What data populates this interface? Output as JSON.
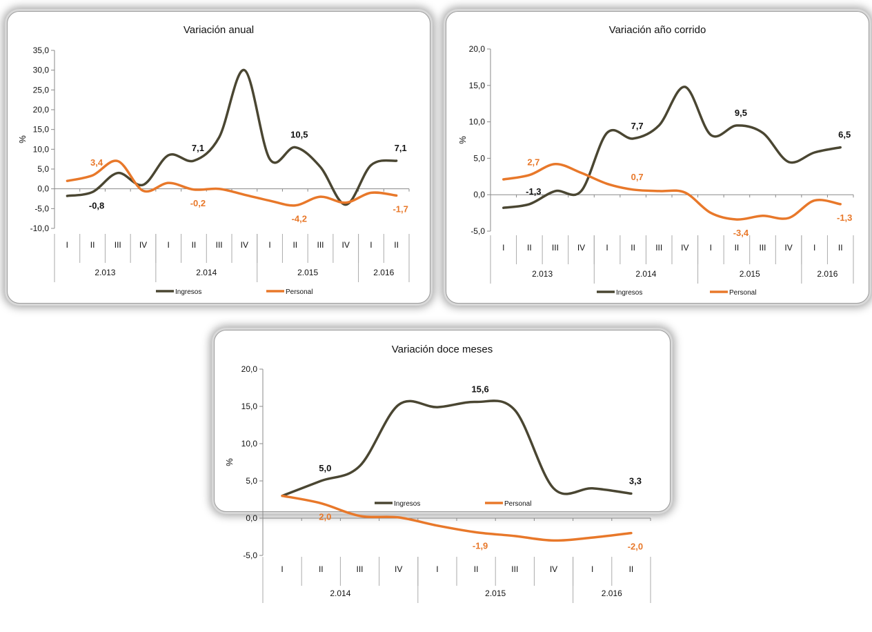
{
  "colors": {
    "ingresos": "#4a4632",
    "personal": "#e8782a",
    "ingresos_label": "#111111",
    "personal_label": "#e8782a"
  },
  "legend": {
    "ingresos": "Ingresos",
    "personal": "Personal"
  },
  "chart_data": [
    {
      "type": "line",
      "title": "Variación anual",
      "ylabel": "%",
      "ylim": [
        -10,
        35
      ],
      "yticks": [
        "35,0",
        "30,0",
        "25,0",
        "20,0",
        "15,0",
        "10,0",
        "5,0",
        "0,0",
        "-5,0",
        "-10,0"
      ],
      "ytick_values": [
        35,
        30,
        25,
        20,
        15,
        10,
        5,
        0,
        -5,
        -10
      ],
      "categories": [
        "I",
        "II",
        "III",
        "IV",
        "I",
        "II",
        "III",
        "IV",
        "I",
        "II",
        "III",
        "IV",
        "I",
        "II"
      ],
      "years": [
        {
          "label": "2.013",
          "span": 4
        },
        {
          "label": "2.014",
          "span": 4
        },
        {
          "label": "2.015",
          "span": 4
        },
        {
          "label": "2.016",
          "span": 2
        }
      ],
      "series": [
        {
          "name": "Ingresos",
          "values": [
            -1.8,
            -0.8,
            4.0,
            1.0,
            8.5,
            7.1,
            13.0,
            30.0,
            7.5,
            10.5,
            5.5,
            -4.0,
            6.0,
            7.1
          ]
        },
        {
          "name": "Personal",
          "values": [
            2.0,
            3.4,
            7.0,
            -0.5,
            1.5,
            -0.2,
            0.0,
            -1.5,
            -3.0,
            -4.2,
            -2.0,
            -3.5,
            -1.0,
            -1.7
          ]
        }
      ],
      "data_labels": [
        {
          "series": 0,
          "index": 1,
          "text": "-0,8",
          "pos": "below"
        },
        {
          "series": 0,
          "index": 5,
          "text": "7,1",
          "pos": "above"
        },
        {
          "series": 0,
          "index": 9,
          "text": "10,5",
          "pos": "above"
        },
        {
          "series": 0,
          "index": 13,
          "text": "7,1",
          "pos": "above"
        },
        {
          "series": 1,
          "index": 1,
          "text": "3,4",
          "pos": "above"
        },
        {
          "series": 1,
          "index": 5,
          "text": "-0,2",
          "pos": "below"
        },
        {
          "series": 1,
          "index": 9,
          "text": "-4,2",
          "pos": "below"
        },
        {
          "series": 1,
          "index": 13,
          "text": "-1,7",
          "pos": "below"
        }
      ]
    },
    {
      "type": "line",
      "title": "Variación año corrido",
      "ylabel": "%",
      "ylim": [
        -5,
        20
      ],
      "yticks": [
        "20,0",
        "15,0",
        "10,0",
        "5,0",
        "0,0",
        "-5,0"
      ],
      "ytick_values": [
        20,
        15,
        10,
        5,
        0,
        -5
      ],
      "categories": [
        "I",
        "II",
        "III",
        "IV",
        "I",
        "II",
        "III",
        "IV",
        "I",
        "II",
        "III",
        "IV",
        "I",
        "II"
      ],
      "years": [
        {
          "label": "2.013",
          "span": 4
        },
        {
          "label": "2.014",
          "span": 4
        },
        {
          "label": "2.015",
          "span": 4
        },
        {
          "label": "2.016",
          "span": 2
        }
      ],
      "series": [
        {
          "name": "Ingresos",
          "values": [
            -1.8,
            -1.3,
            0.5,
            0.5,
            8.5,
            7.7,
            9.5,
            14.8,
            8.2,
            9.5,
            8.5,
            4.5,
            5.8,
            6.5
          ]
        },
        {
          "name": "Personal",
          "values": [
            2.1,
            2.7,
            4.2,
            3.0,
            1.5,
            0.7,
            0.5,
            0.3,
            -2.5,
            -3.4,
            -2.9,
            -3.2,
            -0.8,
            -1.3
          ]
        }
      ],
      "data_labels": [
        {
          "series": 0,
          "index": 1,
          "text": "-1,3",
          "pos": "above"
        },
        {
          "series": 0,
          "index": 5,
          "text": "7,7",
          "pos": "above"
        },
        {
          "series": 0,
          "index": 9,
          "text": "9,5",
          "pos": "above"
        },
        {
          "series": 0,
          "index": 13,
          "text": "6,5",
          "pos": "above"
        },
        {
          "series": 1,
          "index": 1,
          "text": "2,7",
          "pos": "above"
        },
        {
          "series": 1,
          "index": 5,
          "text": "0,7",
          "pos": "above"
        },
        {
          "series": 1,
          "index": 9,
          "text": "-3,4",
          "pos": "below"
        },
        {
          "series": 1,
          "index": 13,
          "text": "-1,3",
          "pos": "below"
        }
      ]
    },
    {
      "type": "line",
      "title": "Variación doce meses",
      "ylabel": "%",
      "ylim": [
        -5,
        20
      ],
      "yticks": [
        "20,0",
        "15,0",
        "10,0",
        "5,0",
        "0,0",
        "-5,0"
      ],
      "ytick_values": [
        20,
        15,
        10,
        5,
        0,
        -5
      ],
      "categories": [
        "I",
        "II",
        "III",
        "IV",
        "I",
        "II",
        "III",
        "IV",
        "I",
        "II"
      ],
      "years": [
        {
          "label": "2.014",
          "span": 4
        },
        {
          "label": "2.015",
          "span": 4
        },
        {
          "label": "2.016",
          "span": 2
        }
      ],
      "series": [
        {
          "name": "Ingresos",
          "values": [
            3.0,
            5.0,
            7.0,
            15.2,
            14.9,
            15.6,
            14.5,
            4.0,
            4.0,
            3.3
          ]
        },
        {
          "name": "Personal",
          "values": [
            3.0,
            2.0,
            0.3,
            0.1,
            -1.0,
            -1.9,
            -2.4,
            -3.0,
            -2.6,
            -2.0
          ]
        }
      ],
      "data_labels": [
        {
          "series": 0,
          "index": 1,
          "text": "5,0",
          "pos": "above"
        },
        {
          "series": 0,
          "index": 5,
          "text": "15,6",
          "pos": "above"
        },
        {
          "series": 0,
          "index": 9,
          "text": "3,3",
          "pos": "above"
        },
        {
          "series": 1,
          "index": 1,
          "text": "2,0",
          "pos": "below"
        },
        {
          "series": 1,
          "index": 5,
          "text": "-1,9",
          "pos": "below"
        },
        {
          "series": 1,
          "index": 9,
          "text": "-2,0",
          "pos": "below"
        }
      ]
    }
  ]
}
